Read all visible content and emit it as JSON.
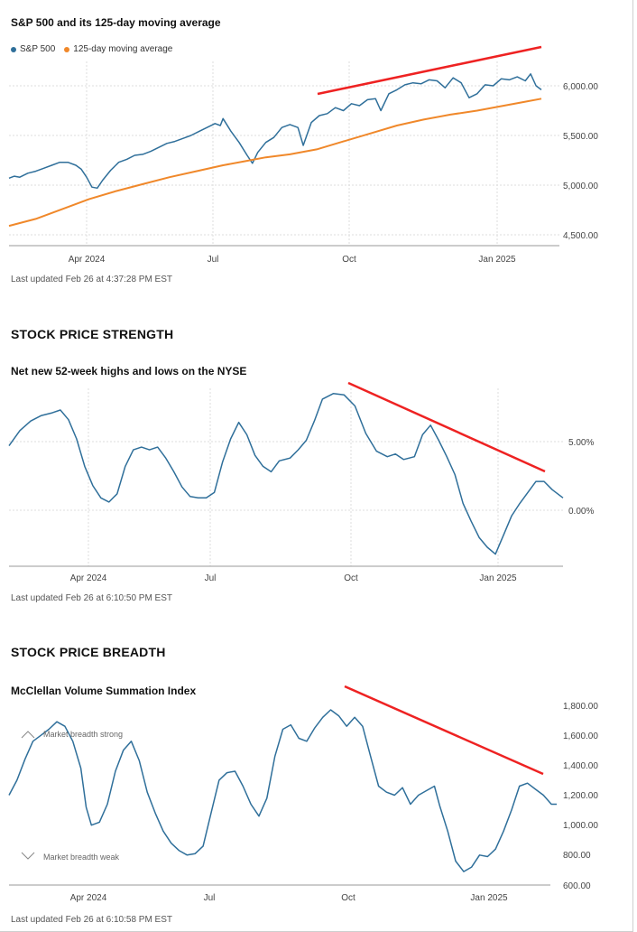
{
  "charts": {
    "sp500": {
      "title": "S&P 500 and its 125-day moving average",
      "updated": "Last updated Feb 26 at 4:37:28 PM EST",
      "legend": [
        {
          "name": "S&P 500",
          "color": "#2f6f9a"
        },
        {
          "name": "125-day moving average",
          "color": "#f0882a"
        }
      ]
    },
    "strength": {
      "section": "STOCK PRICE STRENGTH",
      "title": "Net new 52-week highs and lows on the NYSE",
      "updated": "Last updated Feb 26 at 6:10:50 PM EST"
    },
    "breadth": {
      "section": "STOCK PRICE BREADTH",
      "title": "McClellan Volume Summation Index",
      "updated": "Last updated Feb 26 at 6:10:58 PM EST",
      "annotation_strong": "Market breadth strong",
      "annotation_weak": "Market breadth weak"
    }
  },
  "colors": {
    "line": "#2f6f9a",
    "ma": "#f0882a",
    "trend": "#ee2222",
    "grid": "#dddddd"
  },
  "chart_data": [
    {
      "id": "sp500",
      "type": "line",
      "title": "S&P 500 and its 125-day moving average",
      "x_ticks": [
        "Apr 2024",
        "Jul",
        "Oct",
        "Jan 2025"
      ],
      "y_ticks": [
        "4,500.00",
        "5,000.00",
        "5,500.00",
        "6,000.00"
      ],
      "ylim": [
        4350,
        6250
      ],
      "grid": true,
      "legend_position": "top-left",
      "series": [
        {
          "name": "S&P 500",
          "points": [
            [
              0,
              5070
            ],
            [
              0.2,
              5090
            ],
            [
              0.4,
              5080
            ],
            [
              0.7,
              5120
            ],
            [
              1.0,
              5140
            ],
            [
              1.3,
              5170
            ],
            [
              1.6,
              5200
            ],
            [
              1.9,
              5230
            ],
            [
              2.2,
              5230
            ],
            [
              2.5,
              5200
            ],
            [
              2.7,
              5160
            ],
            [
              2.9,
              5080
            ],
            [
              3.1,
              4980
            ],
            [
              3.3,
              4970
            ],
            [
              3.5,
              5050
            ],
            [
              3.8,
              5150
            ],
            [
              4.1,
              5230
            ],
            [
              4.4,
              5260
            ],
            [
              4.7,
              5300
            ],
            [
              5.0,
              5310
            ],
            [
              5.3,
              5340
            ],
            [
              5.6,
              5380
            ],
            [
              5.9,
              5420
            ],
            [
              6.2,
              5440
            ],
            [
              6.5,
              5470
            ],
            [
              6.8,
              5500
            ],
            [
              7.1,
              5540
            ],
            [
              7.4,
              5580
            ],
            [
              7.7,
              5620
            ],
            [
              7.9,
              5600
            ],
            [
              8.0,
              5670
            ],
            [
              8.3,
              5540
            ],
            [
              8.6,
              5430
            ],
            [
              8.9,
              5300
            ],
            [
              9.1,
              5220
            ],
            [
              9.3,
              5330
            ],
            [
              9.6,
              5430
            ],
            [
              9.9,
              5480
            ],
            [
              10.2,
              5580
            ],
            [
              10.5,
              5610
            ],
            [
              10.8,
              5580
            ],
            [
              11.0,
              5400
            ],
            [
              11.3,
              5630
            ],
            [
              11.6,
              5700
            ],
            [
              11.9,
              5720
            ],
            [
              12.2,
              5780
            ],
            [
              12.5,
              5750
            ],
            [
              12.8,
              5820
            ],
            [
              13.1,
              5800
            ],
            [
              13.4,
              5860
            ],
            [
              13.7,
              5870
            ],
            [
              13.9,
              5750
            ],
            [
              14.2,
              5920
            ],
            [
              14.5,
              5960
            ],
            [
              14.8,
              6010
            ],
            [
              15.1,
              6030
            ],
            [
              15.4,
              6020
            ],
            [
              15.7,
              6060
            ],
            [
              16.0,
              6050
            ],
            [
              16.3,
              5980
            ],
            [
              16.6,
              6080
            ],
            [
              16.9,
              6030
            ],
            [
              17.2,
              5880
            ],
            [
              17.5,
              5920
            ],
            [
              17.8,
              6010
            ],
            [
              18.1,
              6000
            ],
            [
              18.4,
              6070
            ],
            [
              18.7,
              6060
            ],
            [
              19.0,
              6090
            ],
            [
              19.3,
              6050
            ],
            [
              19.5,
              6120
            ],
            [
              19.7,
              6000
            ],
            [
              19.9,
              5960
            ]
          ]
        },
        {
          "name": "125-day moving average",
          "points": [
            [
              0,
              4590
            ],
            [
              1,
              4660
            ],
            [
              2,
              4760
            ],
            [
              3,
              4860
            ],
            [
              4,
              4940
            ],
            [
              5,
              5010
            ],
            [
              6,
              5080
            ],
            [
              7,
              5140
            ],
            [
              8,
              5200
            ],
            [
              8.8,
              5240
            ],
            [
              9.6,
              5280
            ],
            [
              10.5,
              5310
            ],
            [
              11.5,
              5360
            ],
            [
              12.5,
              5440
            ],
            [
              13.5,
              5520
            ],
            [
              14.5,
              5600
            ],
            [
              15.5,
              5660
            ],
            [
              16.5,
              5710
            ],
            [
              17.5,
              5750
            ],
            [
              18.5,
              5800
            ],
            [
              19.3,
              5840
            ],
            [
              19.9,
              5870
            ]
          ]
        }
      ]
    },
    {
      "id": "strength",
      "type": "line",
      "title": "Net new 52-week highs and lows on the NYSE",
      "x_ticks": [
        "Apr 2024",
        "Jul",
        "Oct",
        "Jan 2025"
      ],
      "y_ticks": [
        "0.00%",
        "5.00%"
      ],
      "ylim": [
        -4,
        9
      ],
      "grid": true,
      "series": [
        {
          "name": "",
          "points": [
            [
              0,
              4.7
            ],
            [
              0.4,
              5.8
            ],
            [
              0.8,
              6.5
            ],
            [
              1.2,
              6.9
            ],
            [
              1.6,
              7.1
            ],
            [
              1.9,
              7.3
            ],
            [
              2.2,
              6.6
            ],
            [
              2.5,
              5.2
            ],
            [
              2.8,
              3.2
            ],
            [
              3.1,
              1.8
            ],
            [
              3.4,
              0.9
            ],
            [
              3.7,
              0.6
            ],
            [
              4.0,
              1.2
            ],
            [
              4.3,
              3.2
            ],
            [
              4.6,
              4.4
            ],
            [
              4.9,
              4.6
            ],
            [
              5.2,
              4.4
            ],
            [
              5.5,
              4.6
            ],
            [
              5.8,
              3.8
            ],
            [
              6.1,
              2.8
            ],
            [
              6.4,
              1.7
            ],
            [
              6.7,
              1.0
            ],
            [
              7.0,
              0.9
            ],
            [
              7.3,
              0.9
            ],
            [
              7.6,
              1.3
            ],
            [
              7.9,
              3.5
            ],
            [
              8.2,
              5.2
            ],
            [
              8.5,
              6.4
            ],
            [
              8.8,
              5.5
            ],
            [
              9.1,
              4.0
            ],
            [
              9.4,
              3.2
            ],
            [
              9.7,
              2.8
            ],
            [
              10.0,
              3.6
            ],
            [
              10.4,
              3.8
            ],
            [
              10.7,
              4.4
            ],
            [
              11.0,
              5.1
            ],
            [
              11.3,
              6.5
            ],
            [
              11.6,
              8.1
            ],
            [
              12.0,
              8.5
            ],
            [
              12.4,
              8.4
            ],
            [
              12.8,
              7.6
            ],
            [
              13.2,
              5.6
            ],
            [
              13.6,
              4.3
            ],
            [
              14.0,
              3.9
            ],
            [
              14.3,
              4.1
            ],
            [
              14.6,
              3.7
            ],
            [
              15.0,
              3.9
            ],
            [
              15.3,
              5.5
            ],
            [
              15.6,
              6.2
            ],
            [
              15.9,
              5.1
            ],
            [
              16.2,
              3.9
            ],
            [
              16.5,
              2.6
            ],
            [
              16.8,
              0.5
            ],
            [
              17.1,
              -0.8
            ],
            [
              17.4,
              -2.0
            ],
            [
              17.7,
              -2.7
            ],
            [
              18.0,
              -3.2
            ],
            [
              18.3,
              -1.8
            ],
            [
              18.6,
              -0.4
            ],
            [
              18.9,
              0.5
            ],
            [
              19.2,
              1.3
            ],
            [
              19.5,
              2.1
            ],
            [
              19.8,
              2.1
            ],
            [
              20.1,
              1.5
            ],
            [
              20.5,
              0.9
            ]
          ]
        }
      ]
    },
    {
      "id": "breadth",
      "type": "line",
      "title": "McClellan Volume Summation Index",
      "x_ticks": [
        "Apr 2024",
        "Jul",
        "Oct",
        "Jan 2025"
      ],
      "y_ticks": [
        "600.00",
        "800.00",
        "1,000.00",
        "1,200.00",
        "1,400.00",
        "1,600.00",
        "1,800.00"
      ],
      "ylim": [
        600,
        1800
      ],
      "grid": false,
      "series": [
        {
          "name": "",
          "points": [
            [
              0,
              1200
            ],
            [
              0.3,
              1300
            ],
            [
              0.6,
              1440
            ],
            [
              0.9,
              1560
            ],
            [
              1.2,
              1600
            ],
            [
              1.5,
              1640
            ],
            [
              1.8,
              1690
            ],
            [
              2.1,
              1660
            ],
            [
              2.4,
              1560
            ],
            [
              2.7,
              1380
            ],
            [
              2.9,
              1120
            ],
            [
              3.1,
              1000
            ],
            [
              3.4,
              1020
            ],
            [
              3.7,
              1140
            ],
            [
              4.0,
              1360
            ],
            [
              4.3,
              1500
            ],
            [
              4.6,
              1560
            ],
            [
              4.9,
              1430
            ],
            [
              5.2,
              1220
            ],
            [
              5.5,
              1080
            ],
            [
              5.8,
              960
            ],
            [
              6.1,
              880
            ],
            [
              6.4,
              830
            ],
            [
              6.7,
              800
            ],
            [
              7.0,
              810
            ],
            [
              7.3,
              860
            ],
            [
              7.6,
              1080
            ],
            [
              7.9,
              1300
            ],
            [
              8.2,
              1350
            ],
            [
              8.5,
              1360
            ],
            [
              8.8,
              1260
            ],
            [
              9.1,
              1140
            ],
            [
              9.4,
              1060
            ],
            [
              9.7,
              1180
            ],
            [
              10.0,
              1460
            ],
            [
              10.3,
              1640
            ],
            [
              10.6,
              1670
            ],
            [
              10.9,
              1580
            ],
            [
              11.2,
              1560
            ],
            [
              11.5,
              1650
            ],
            [
              11.8,
              1720
            ],
            [
              12.1,
              1770
            ],
            [
              12.4,
              1730
            ],
            [
              12.7,
              1660
            ],
            [
              13.0,
              1720
            ],
            [
              13.3,
              1660
            ],
            [
              13.6,
              1460
            ],
            [
              13.9,
              1260
            ],
            [
              14.2,
              1220
            ],
            [
              14.5,
              1200
            ],
            [
              14.8,
              1250
            ],
            [
              15.1,
              1140
            ],
            [
              15.4,
              1200
            ],
            [
              15.7,
              1230
            ],
            [
              16.0,
              1260
            ],
            [
              16.2,
              1130
            ],
            [
              16.5,
              960
            ],
            [
              16.8,
              760
            ],
            [
              17.1,
              690
            ],
            [
              17.4,
              720
            ],
            [
              17.7,
              800
            ],
            [
              18.0,
              790
            ],
            [
              18.3,
              840
            ],
            [
              18.6,
              960
            ],
            [
              18.9,
              1100
            ],
            [
              19.2,
              1260
            ],
            [
              19.5,
              1280
            ],
            [
              19.8,
              1240
            ],
            [
              20.1,
              1200
            ],
            [
              20.4,
              1140
            ],
            [
              20.6,
              1140
            ]
          ]
        }
      ]
    }
  ]
}
